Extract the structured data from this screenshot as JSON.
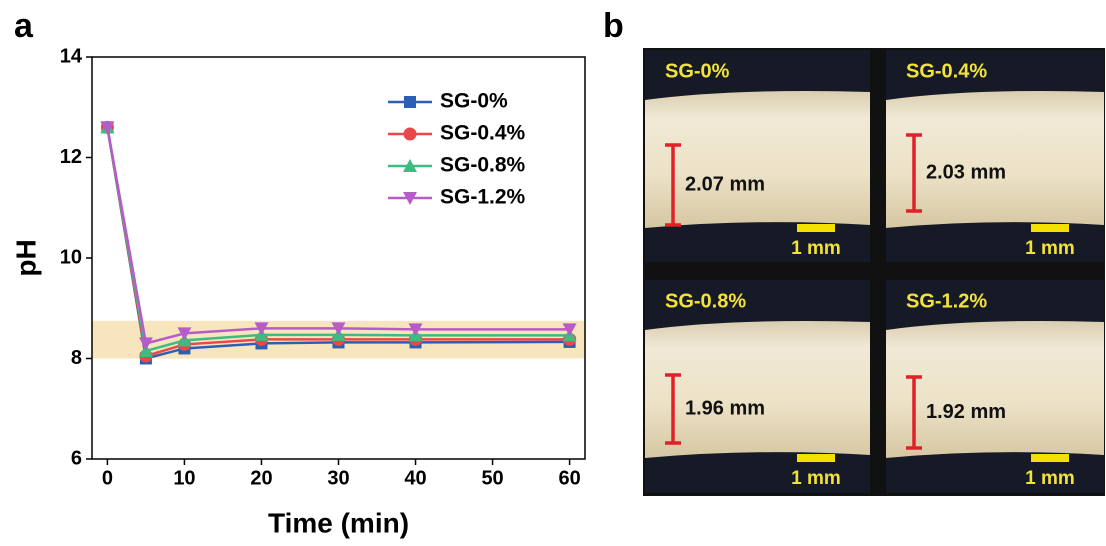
{
  "panel_labels": [
    "a",
    "b"
  ],
  "chart_data": {
    "type": "line",
    "xlabel": "Time (min)",
    "ylabel": "pH",
    "x": [
      0,
      5,
      10,
      20,
      30,
      40,
      60
    ],
    "series": [
      {
        "name": "SG-0%",
        "color": "#2b5fb4",
        "marker": "square",
        "values": [
          12.6,
          8.0,
          8.2,
          8.3,
          8.32,
          8.32,
          8.33
        ]
      },
      {
        "name": "SG-0.4%",
        "color": "#e8484b",
        "marker": "circle",
        "values": [
          12.6,
          8.05,
          8.28,
          8.38,
          8.38,
          8.38,
          8.38
        ]
      },
      {
        "name": "SG-0.8%",
        "color": "#3dbb80",
        "marker": "triangle-up",
        "values": [
          12.6,
          8.15,
          8.36,
          8.47,
          8.47,
          8.46,
          8.46
        ]
      },
      {
        "name": "SG-1.2%",
        "color": "#b65cc9",
        "marker": "triangle-down",
        "values": [
          12.6,
          8.3,
          8.5,
          8.6,
          8.6,
          8.58,
          8.58
        ]
      }
    ],
    "xlim": [
      -2,
      62
    ],
    "xticks": [
      0,
      10,
      20,
      30,
      40,
      50,
      60
    ],
    "ylim": [
      6,
      14
    ],
    "yticks": [
      6,
      8,
      10,
      12,
      14
    ],
    "highlight_band": {
      "ylim": [
        8,
        8.75
      ],
      "color": "#f7e6bd"
    },
    "legend": "upper right"
  },
  "micrographs": [
    {
      "label": "SG-0%",
      "thickness": "2.07 mm",
      "scale": "1 mm"
    },
    {
      "label": "SG-0.4%",
      "thickness": "2.03 mm",
      "scale": "1 mm"
    },
    {
      "label": "SG-0.8%",
      "thickness": "1.96 mm",
      "scale": "1 mm"
    },
    {
      "label": "SG-1.2%",
      "thickness": "1.92 mm",
      "scale": "1 mm"
    }
  ]
}
